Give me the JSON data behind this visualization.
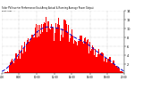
{
  "title": "Solar PV/Inverter Performance East Array Actual & Running Average Power Output",
  "subtitle": "East Array  --",
  "bg_color": "#ffffff",
  "plot_bg_color": "#ffffff",
  "grid_color": "#aaaaaa",
  "bar_color": "#ff0000",
  "line_color": "#0000cc",
  "num_bars": 130,
  "ylim": [
    0,
    14
  ],
  "ytick_vals": [
    2,
    4,
    6,
    8,
    10,
    12,
    14
  ],
  "ytick_labels": [
    "2",
    "4",
    "6",
    "8",
    "10",
    "12",
    "14"
  ],
  "x_tick_positions": [
    0,
    18,
    37,
    56,
    74,
    93,
    111,
    129
  ],
  "x_tick_labels": [
    "6:00",
    "8:00",
    "10:00",
    "12:00",
    "14:00",
    "16:00",
    "18:00",
    "20:00"
  ],
  "figsize": [
    1.6,
    1.0
  ],
  "dpi": 100
}
